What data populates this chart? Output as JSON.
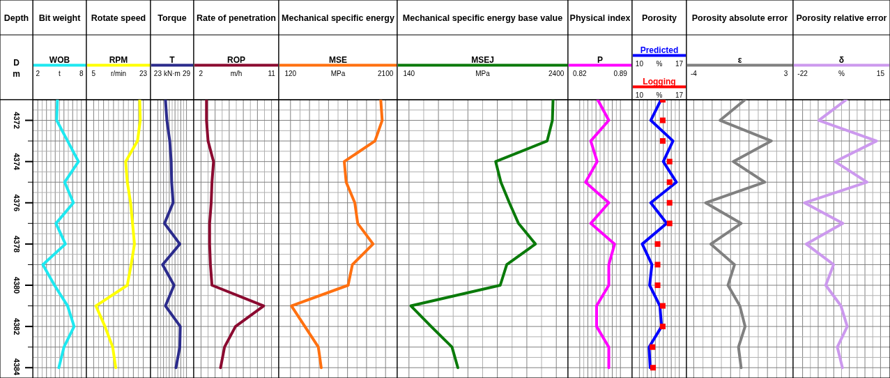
{
  "chart_data": [
    {
      "type": "line",
      "title": "Bit weight",
      "ylabel": "Depth",
      "annotations": [
        "D",
        "m"
      ],
      "orientation": "horizontal",
      "xlabel": "t",
      "x": [
        4371,
        4372,
        4373,
        4374,
        4375,
        4376,
        4377,
        4378,
        4379,
        4380,
        4381,
        4382,
        4383,
        4384
      ],
      "xlim": [
        2,
        8
      ],
      "xticks": [
        2,
        8
      ],
      "ylim": [
        4384.5,
        4371
      ],
      "yticks": [
        4372,
        {
          "value": 4373,
          "label": null
        },
        4374,
        {
          "value": 4375,
          "label": null
        },
        4376,
        {
          "value": 4377,
          "label": null
        },
        4378,
        {
          "value": 4379,
          "label": null
        },
        4380,
        {
          "value": 4381,
          "label": null
        },
        4382,
        {
          "value": 4383,
          "label": null
        },
        4384
      ],
      "grid": true,
      "legend": "top",
      "series": [
        {
          "name": "WOB",
          "color": "#1ee8f0",
          "values": [
            4.7,
            4.6,
            6.1,
            7.6,
            5.7,
            6.9,
            4.5,
            5.8,
            2.7,
            4.3,
            6.1,
            7.0,
            5.6,
            4.9
          ]
        }
      ]
    },
    {
      "type": "line",
      "title": "Rotate speed",
      "orientation": "horizontal",
      "xlabel": "r/min",
      "x": [
        4371,
        4372,
        4373,
        4374,
        4375,
        4376,
        4377,
        4378,
        4379,
        4380,
        4381,
        4382,
        4383,
        4384
      ],
      "xlim": [
        5,
        23
      ],
      "xticks": [
        5,
        23
      ],
      "ylim": [
        4384.5,
        4371
      ],
      "grid": true,
      "legend": "top",
      "tick_labels": "x",
      "series": [
        {
          "name": "RPM",
          "color": "#ffff00",
          "values": [
            21.7,
            21.9,
            20.9,
            16.6,
            17.2,
            18.4,
            19.1,
            19.8,
            18.6,
            17.2,
            5.8,
            9.1,
            11.9,
            13.0
          ]
        }
      ]
    },
    {
      "type": "line",
      "title": "Torque",
      "orientation": "horizontal",
      "xlabel": "kN·m",
      "x": [
        4371,
        4372,
        4373,
        4374,
        4375,
        4376,
        4377,
        4378,
        4379,
        4380,
        4381,
        4382,
        4383,
        4384
      ],
      "xlim": [
        23,
        29
      ],
      "xticks": [
        23,
        29
      ],
      "ylim": [
        4384.5,
        4371
      ],
      "grid": true,
      "legend": "top",
      "tick_labels": "x",
      "series": [
        {
          "name": "T",
          "color": "#2b2b8c",
          "values": [
            24.6,
            24.9,
            25.5,
            25.8,
            25.9,
            26.2,
            24.4,
            27.6,
            24.0,
            26.4,
            24.6,
            27.7,
            27.6,
            26.8
          ]
        }
      ]
    },
    {
      "type": "line",
      "title": "Rate of penetration",
      "orientation": "horizontal",
      "xlabel": "m/h",
      "x": [
        4371,
        4372,
        4373,
        4374,
        4375,
        4376,
        4377,
        4378,
        4379,
        4380,
        4381,
        4382,
        4383,
        4384
      ],
      "xlim": [
        2,
        11
      ],
      "xticks": [
        2,
        11
      ],
      "ylim": [
        4384.5,
        4371
      ],
      "grid": true,
      "legend": "top",
      "tick_labels": "x",
      "series": [
        {
          "name": "ROP",
          "color": "#8b0a30",
          "values": [
            2.7,
            2.7,
            2.9,
            3.6,
            3.4,
            3.3,
            3.1,
            3.1,
            3.2,
            3.4,
            10.0,
            6.4,
            5.0,
            4.5
          ]
        }
      ]
    },
    {
      "type": "line",
      "title": "Mechanical specific energy",
      "orientation": "horizontal",
      "xlabel": "MPa",
      "x": [
        4371,
        4372,
        4373,
        4374,
        4375,
        4376,
        4377,
        4378,
        4379,
        4380,
        4381,
        4382,
        4383,
        4384
      ],
      "xlim": [
        120,
        2100
      ],
      "xticks": [
        120,
        2100
      ],
      "ylim": [
        4384.5,
        4371
      ],
      "grid": true,
      "legend": "top",
      "tick_labels": "x",
      "series": [
        {
          "name": "MSE",
          "color": "#ff7010",
          "values": [
            2000,
            2030,
            1880,
            1240,
            1280,
            1460,
            1520,
            1840,
            1410,
            1320,
            140,
            420,
            700,
            760
          ]
        }
      ]
    },
    {
      "type": "line",
      "title": "Mechanical specific energy base value",
      "orientation": "horizontal",
      "xlabel": "MPa",
      "x": [
        4371,
        4372,
        4373,
        4374,
        4375,
        4376,
        4377,
        4378,
        4379,
        4380,
        4381,
        4382,
        4383,
        4384
      ],
      "xlim": [
        140,
        2400
      ],
      "xticks": [
        140,
        2400
      ],
      "ylim": [
        4384.5,
        4371
      ],
      "grid": true,
      "legend": "top",
      "tick_labels": "x",
      "series": [
        {
          "name": "MSEJ",
          "color": "#0a7a0a",
          "values": [
            2350,
            2340,
            2260,
            1470,
            1550,
            1680,
            1820,
            2080,
            1640,
            1540,
            170,
            480,
            800,
            890
          ]
        }
      ]
    },
    {
      "type": "line",
      "title": "Physical index",
      "orientation": "horizontal",
      "x": [
        4371,
        4372,
        4373,
        4374,
        4375,
        4376,
        4377,
        4378,
        4379,
        4380,
        4381,
        4382,
        4383,
        4384
      ],
      "xlim": [
        0.82,
        0.89
      ],
      "xticks": [
        0.82,
        0.89
      ],
      "ylim": [
        4384.5,
        4371
      ],
      "grid": true,
      "legend": "top",
      "tick_labels": "x",
      "series": [
        {
          "name": "P",
          "color": "#ff00ff",
          "values": [
            0.851,
            0.87,
            0.839,
            0.85,
            0.83,
            0.87,
            0.839,
            0.88,
            0.87,
            0.87,
            0.849,
            0.849,
            0.87,
            0.87
          ]
        }
      ]
    },
    {
      "type": "line",
      "title": "Porosity",
      "orientation": "horizontal",
      "xlabel": "%",
      "x2label": "%",
      "x": [
        4371,
        4372,
        4373,
        4374,
        4375,
        4376,
        4377,
        4378,
        4379,
        4380,
        4381,
        4382,
        4383,
        4384
      ],
      "xlim": [
        10,
        17
      ],
      "xticks": [
        10,
        17
      ],
      "x2lim": [
        10,
        17
      ],
      "x2ticks": [
        10,
        17
      ],
      "ylim": [
        4384.5,
        4371
      ],
      "grid": true,
      "legend": "top",
      "tick_labels": "x",
      "series": [
        {
          "name": "Predicted",
          "color": "#0000ff",
          "values": [
            13.8,
            12.0,
            15.9,
            14.2,
            16.5,
            12.0,
            14.8,
            10.5,
            12.2,
            11.8,
            13.6,
            13.9,
            11.7,
            11.9
          ]
        },
        {
          "name": "Logging",
          "type": "scatter",
          "axis": "x2",
          "marker": "square",
          "color": "#ff0000",
          "values": [
            14.1,
            14.1,
            14.1,
            15.3,
            15.3,
            15.3,
            15.3,
            13.2,
            13.2,
            13.2,
            14.1,
            14.1,
            12.3,
            12.4
          ]
        }
      ]
    },
    {
      "type": "line",
      "title": "Porosity absolute error",
      "orientation": "horizontal",
      "x": [
        4371,
        4372,
        4373,
        4374,
        4375,
        4376,
        4377,
        4378,
        4379,
        4380,
        4381,
        4382,
        4383,
        4384
      ],
      "xlim": [
        -4,
        3
      ],
      "xticks": [
        -4,
        3
      ],
      "ylim": [
        4384.5,
        4371
      ],
      "grid": true,
      "legend": "top",
      "tick_labels": "x",
      "series": [
        {
          "name": "ε",
          "color": "#808080",
          "values": [
            -0.1,
            -2.0,
            1.9,
            -1.0,
            1.4,
            -3.1,
            -0.4,
            -2.7,
            -0.9,
            -1.4,
            -0.5,
            -0.1,
            -0.6,
            -0.4
          ]
        }
      ]
    },
    {
      "type": "line",
      "title": "Porosity relative error",
      "orientation": "horizontal",
      "xlabel": "%",
      "x": [
        4371,
        4372,
        4373,
        4374,
        4375,
        4376,
        4377,
        4378,
        4379,
        4380,
        4381,
        4382,
        4383,
        4384
      ],
      "xlim": [
        -22,
        15
      ],
      "xticks": [
        -22,
        15
      ],
      "ylim": [
        4384.5,
        4371
      ],
      "grid": true,
      "legend": "top",
      "tick_labels": "x",
      "series": [
        {
          "name": "δ",
          "color": "#cc99ee",
          "values": [
            -1.3,
            -14.3,
            13.1,
            -6.6,
            8.6,
            -21.1,
            -2.9,
            -20.3,
            -7.3,
            -11.0,
            -3.8,
            -0.8,
            -5.5,
            -3.1
          ]
        }
      ]
    }
  ]
}
